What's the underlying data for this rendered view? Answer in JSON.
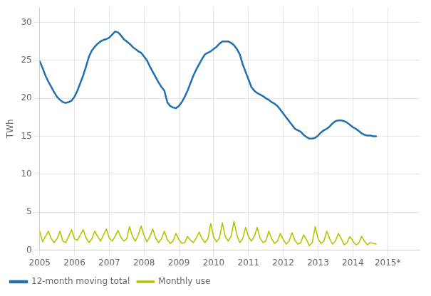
{
  "chart_data": {
    "type": "line",
    "ylabel": "TWh",
    "x": [
      2005.0,
      2005.083333,
      2005.166667,
      2005.25,
      2005.333333,
      2005.416667,
      2005.5,
      2005.583333,
      2005.666667,
      2005.75,
      2005.833333,
      2005.916667,
      2006.0,
      2006.083333,
      2006.166667,
      2006.25,
      2006.333333,
      2006.416667,
      2006.5,
      2006.583333,
      2006.666667,
      2006.75,
      2006.833333,
      2006.916667,
      2007.0,
      2007.083333,
      2007.166667,
      2007.25,
      2007.333333,
      2007.416667,
      2007.5,
      2007.583333,
      2007.666667,
      2007.75,
      2007.833333,
      2007.916667,
      2008.0,
      2008.083333,
      2008.166667,
      2008.25,
      2008.333333,
      2008.416667,
      2008.5,
      2008.583333,
      2008.666667,
      2008.75,
      2008.833333,
      2008.916667,
      2009.0,
      2009.083333,
      2009.166667,
      2009.25,
      2009.333333,
      2009.416667,
      2009.5,
      2009.583333,
      2009.666667,
      2009.75,
      2009.833333,
      2009.916667,
      2010.0,
      2010.083333,
      2010.166667,
      2010.25,
      2010.333333,
      2010.416667,
      2010.5,
      2010.583333,
      2010.666667,
      2010.75,
      2010.833333,
      2010.916667,
      2011.0,
      2011.083333,
      2011.166667,
      2011.25,
      2011.333333,
      2011.416667,
      2011.5,
      2011.583333,
      2011.666667,
      2011.75,
      2011.833333,
      2011.916667,
      2012.0,
      2012.083333,
      2012.166667,
      2012.25,
      2012.333333,
      2012.416667,
      2012.5,
      2012.583333,
      2012.666667,
      2012.75,
      2012.833333,
      2012.916667,
      2013.0,
      2013.083333,
      2013.166667,
      2013.25,
      2013.333333,
      2013.416667,
      2013.5,
      2013.583333,
      2013.666667,
      2013.75,
      2013.833333,
      2013.916667,
      2014.0,
      2014.083333,
      2014.166667,
      2014.25,
      2014.333333,
      2014.416667,
      2014.5,
      2014.583333,
      2014.666667
    ],
    "series": [
      {
        "name": "12-month moving total",
        "color": "#2070b0",
        "values": [
          24.9,
          24.0,
          23.0,
          22.2,
          21.5,
          20.8,
          20.2,
          19.8,
          19.5,
          19.4,
          19.5,
          19.7,
          20.2,
          21.0,
          22.0,
          23.0,
          24.2,
          25.5,
          26.3,
          26.8,
          27.2,
          27.5,
          27.7,
          27.8,
          28.0,
          28.4,
          28.8,
          28.7,
          28.3,
          27.8,
          27.5,
          27.2,
          26.8,
          26.5,
          26.2,
          26.0,
          25.5,
          25.0,
          24.2,
          23.5,
          22.8,
          22.1,
          21.5,
          21.0,
          19.5,
          19.0,
          18.8,
          18.7,
          19.0,
          19.5,
          20.2,
          21.0,
          22.0,
          23.0,
          23.8,
          24.5,
          25.2,
          25.8,
          26.0,
          26.2,
          26.5,
          26.8,
          27.2,
          27.5,
          27.5,
          27.5,
          27.3,
          27.0,
          26.5,
          25.8,
          24.5,
          23.5,
          22.5,
          21.5,
          21.0,
          20.7,
          20.5,
          20.3,
          20.0,
          19.8,
          19.5,
          19.3,
          19.0,
          18.5,
          18.0,
          17.5,
          17.0,
          16.5,
          16.0,
          15.8,
          15.6,
          15.2,
          14.9,
          14.7,
          14.7,
          14.8,
          15.1,
          15.5,
          15.8,
          16.0,
          16.3,
          16.7,
          17.0,
          17.1,
          17.1,
          17.0,
          16.8,
          16.5,
          16.2,
          16.0,
          15.7,
          15.4,
          15.2,
          15.1,
          15.1,
          15.0,
          15.0
        ]
      },
      {
        "name": "Monthly use",
        "color": "#b5c400",
        "values": [
          2.5,
          1.1,
          1.8,
          2.5,
          1.5,
          1.0,
          1.5,
          2.5,
          1.2,
          1.0,
          1.8,
          2.7,
          1.5,
          1.3,
          2.0,
          2.7,
          1.6,
          1.0,
          1.5,
          2.5,
          1.8,
          1.2,
          2.0,
          2.8,
          1.6,
          1.2,
          1.8,
          2.6,
          1.7,
          1.2,
          1.5,
          3.1,
          1.8,
          1.2,
          2.0,
          3.2,
          1.9,
          1.1,
          1.8,
          2.8,
          1.6,
          1.0,
          1.5,
          2.5,
          1.4,
          0.9,
          1.2,
          2.2,
          1.4,
          0.9,
          1.0,
          1.8,
          1.3,
          1.0,
          1.6,
          2.4,
          1.5,
          1.0,
          1.5,
          3.5,
          1.7,
          1.1,
          1.6,
          3.6,
          1.8,
          1.2,
          1.8,
          3.8,
          2.0,
          1.0,
          1.5,
          3.0,
          1.8,
          1.2,
          1.8,
          3.0,
          1.6,
          1.0,
          1.2,
          2.5,
          1.5,
          0.9,
          1.2,
          2.2,
          1.4,
          0.8,
          1.2,
          2.3,
          1.3,
          0.8,
          1.0,
          2.0,
          1.4,
          0.6,
          1.0,
          3.1,
          1.5,
          0.9,
          1.2,
          2.5,
          1.5,
          0.8,
          1.2,
          2.2,
          1.5,
          0.7,
          1.0,
          1.8,
          1.2,
          0.7,
          0.9,
          1.8,
          1.2,
          0.7,
          1.0,
          0.9,
          0.8
        ]
      }
    ],
    "xlim": [
      2005.0,
      2015.917
    ],
    "xticks": [
      2005,
      2006,
      2007,
      2008,
      2009,
      2010,
      2011,
      2012,
      2013,
      2014,
      {
        "value": 2015,
        "label": "2015*"
      }
    ],
    "ylim": [
      0,
      32
    ],
    "yticks": [
      0,
      5,
      10,
      15,
      20,
      25,
      30
    ],
    "grid": true,
    "legend": "lower left"
  }
}
